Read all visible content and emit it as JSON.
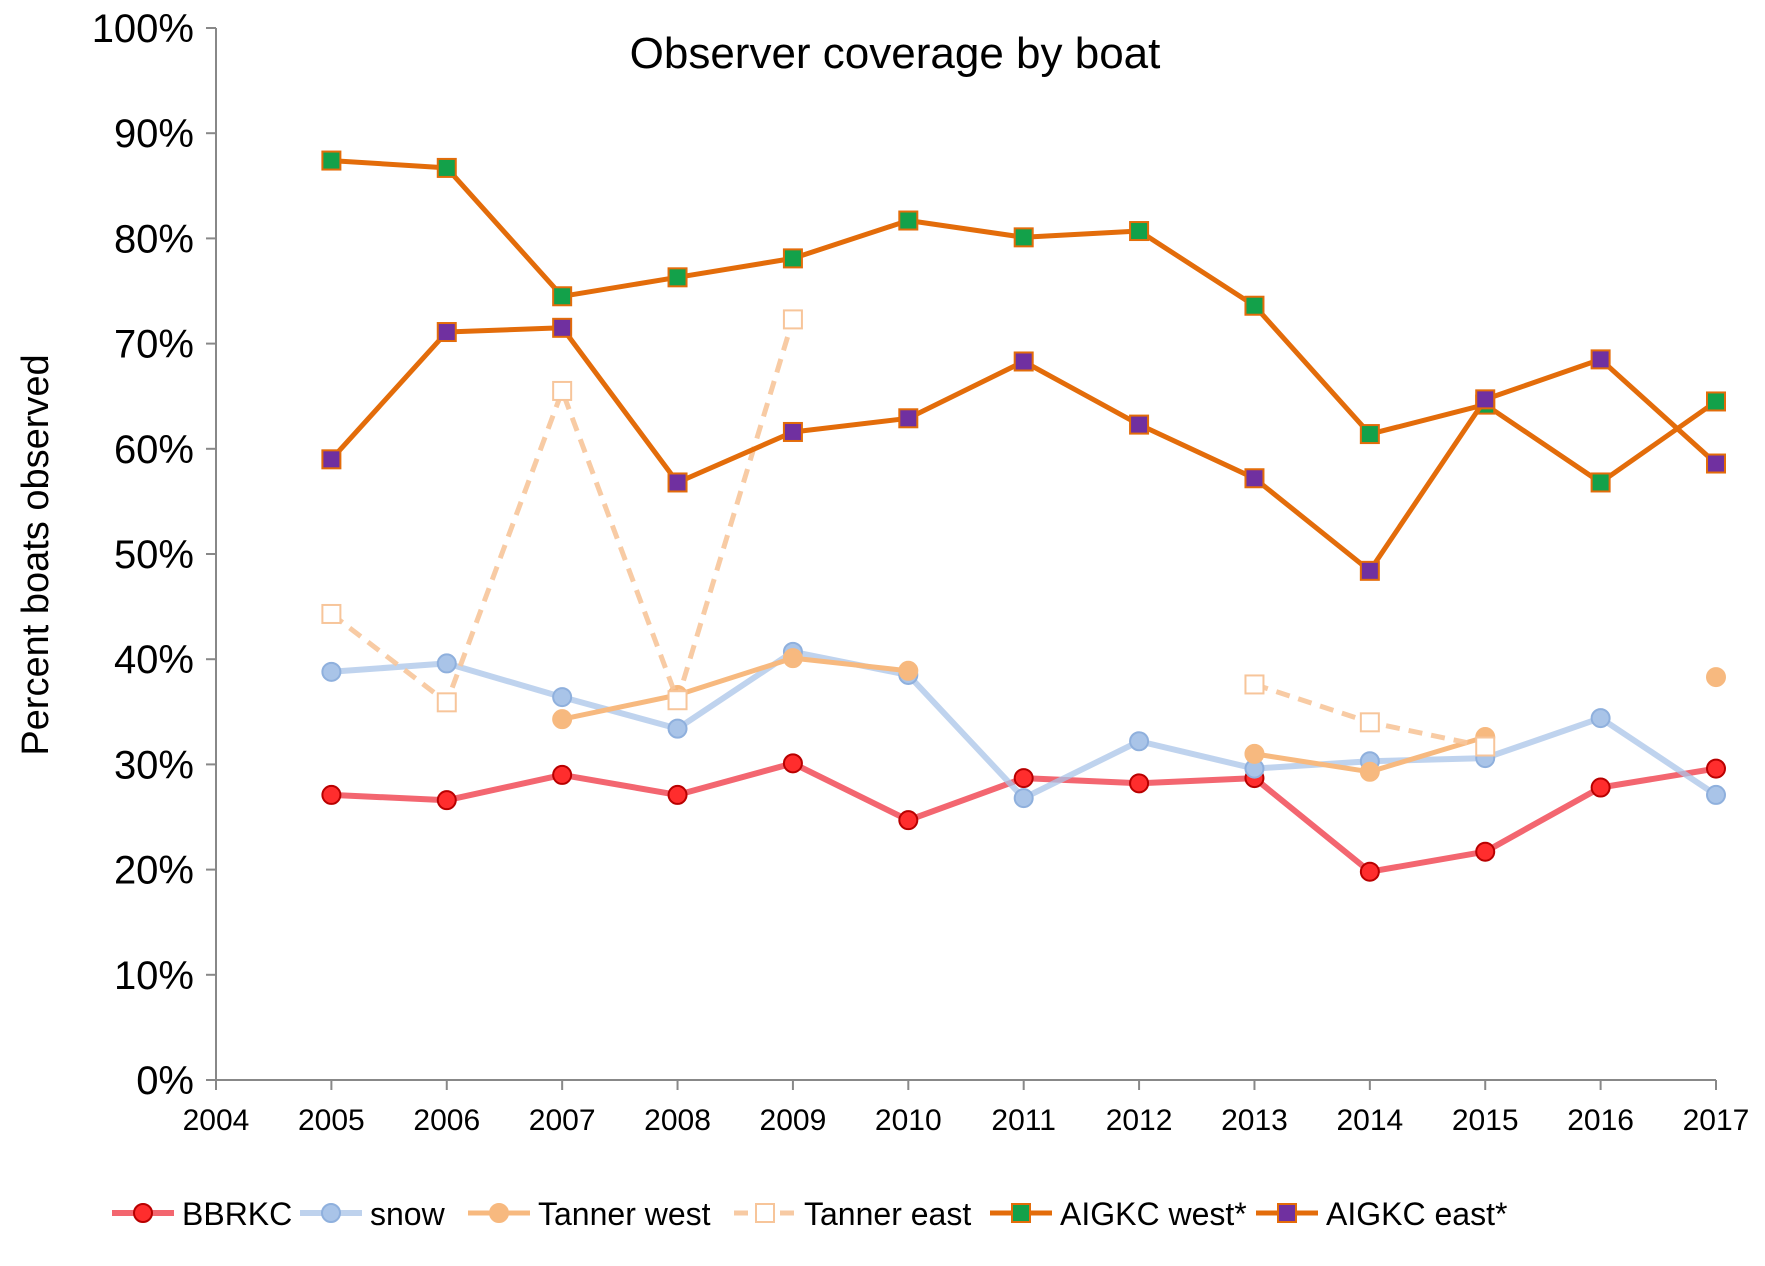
{
  "chart_data": {
    "type": "line",
    "title": "Observer coverage by boat",
    "xlabel": "",
    "ylabel": "Percent boats observed",
    "xlim": [
      2004,
      2017
    ],
    "ylim": [
      0,
      100
    ],
    "y_ticks": [
      "0%",
      "10%",
      "20%",
      "30%",
      "40%",
      "50%",
      "60%",
      "70%",
      "80%",
      "90%",
      "100%"
    ],
    "x_ticks": [
      "2004",
      "2005",
      "2006",
      "2007",
      "2008",
      "2009",
      "2010",
      "2011",
      "2012",
      "2013",
      "2014",
      "2015",
      "2016",
      "2017"
    ],
    "grid": false,
    "legend_position": "bottom",
    "series": [
      {
        "name": "BBRKC",
        "color": "#ef3340",
        "marker": "circle",
        "line_style": "solid-light",
        "points": [
          [
            2005,
            27.1
          ],
          [
            2006,
            26.6
          ],
          [
            2007,
            29.0
          ],
          [
            2008,
            27.1
          ],
          [
            2009,
            30.1
          ],
          [
            2010,
            24.7
          ],
          [
            2011,
            28.7
          ],
          [
            2012,
            28.2
          ],
          [
            2013,
            28.7
          ],
          [
            2014,
            19.8
          ],
          [
            2015,
            21.7
          ],
          [
            2016,
            27.8
          ],
          [
            2017,
            29.6
          ]
        ]
      },
      {
        "name": "snow",
        "color": "#a9c4e8",
        "marker": "circle",
        "line_style": "solid-light",
        "points": [
          [
            2005,
            38.8
          ],
          [
            2006,
            39.6
          ],
          [
            2007,
            36.4
          ],
          [
            2008,
            33.4
          ],
          [
            2009,
            40.7
          ],
          [
            2010,
            38.5
          ],
          [
            2011,
            26.8
          ],
          [
            2012,
            32.2
          ],
          [
            2013,
            29.6
          ],
          [
            2014,
            30.3
          ],
          [
            2015,
            30.6
          ],
          [
            2016,
            34.4
          ],
          [
            2017,
            27.1
          ]
        ]
      },
      {
        "name": "Tanner west",
        "color": "#f7b97f",
        "marker": "circle",
        "line_style": "solid",
        "points": [
          [
            2007,
            34.3
          ],
          [
            2008,
            36.6
          ],
          [
            2009,
            40.1
          ],
          [
            2010,
            38.9
          ],
          [
            2013,
            31.0
          ],
          [
            2014,
            29.3
          ],
          [
            2015,
            32.6
          ],
          [
            2017,
            38.3
          ]
        ]
      },
      {
        "name": "Tanner east",
        "color": "#f7c59a",
        "marker": "square-open",
        "line_style": "dashed",
        "points": [
          [
            2005,
            44.3
          ],
          [
            2006,
            35.9
          ],
          [
            2007,
            65.5
          ],
          [
            2008,
            36.1
          ],
          [
            2009,
            72.3
          ],
          [
            2013,
            37.6
          ],
          [
            2014,
            34.0
          ],
          [
            2015,
            31.7
          ]
        ]
      },
      {
        "name": "AIGKC west*",
        "color": "#e36c0a",
        "marker_color": "#13a14a",
        "marker": "square",
        "line_style": "solid",
        "points": [
          [
            2005,
            87.4
          ],
          [
            2006,
            86.7
          ],
          [
            2007,
            74.5
          ],
          [
            2008,
            76.3
          ],
          [
            2009,
            78.1
          ],
          [
            2010,
            81.7
          ],
          [
            2011,
            80.1
          ],
          [
            2012,
            80.7
          ],
          [
            2013,
            73.6
          ],
          [
            2014,
            61.4
          ],
          [
            2015,
            64.2
          ],
          [
            2016,
            56.8
          ],
          [
            2017,
            64.5
          ]
        ]
      },
      {
        "name": "AIGKC east*",
        "color": "#e36c0a",
        "marker_color": "#7030a0",
        "marker": "square",
        "line_style": "solid",
        "points": [
          [
            2005,
            59.0
          ],
          [
            2006,
            71.1
          ],
          [
            2007,
            71.5
          ],
          [
            2008,
            56.8
          ],
          [
            2009,
            61.6
          ],
          [
            2010,
            62.9
          ],
          [
            2011,
            68.3
          ],
          [
            2012,
            62.3
          ],
          [
            2013,
            57.2
          ],
          [
            2014,
            48.4
          ],
          [
            2015,
            64.7
          ],
          [
            2016,
            68.5
          ],
          [
            2017,
            58.6
          ]
        ]
      }
    ]
  }
}
